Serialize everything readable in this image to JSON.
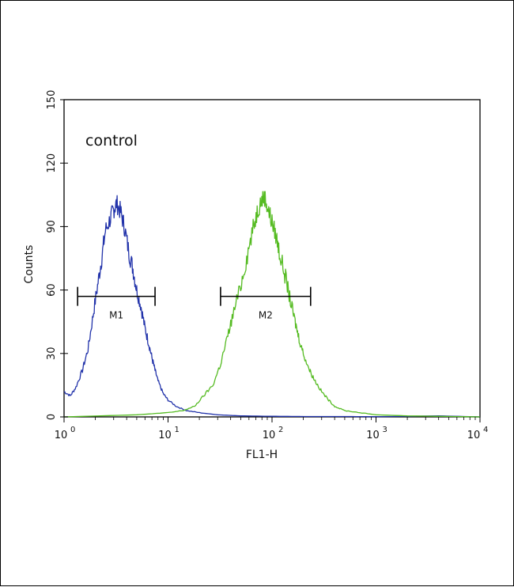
{
  "chart_data": {
    "type": "line",
    "title": "",
    "annotation": "control",
    "xlabel": "FL1-H",
    "ylabel": "Counts",
    "x_scale": "log",
    "xlim": [
      1,
      10000
    ],
    "ylim": [
      0,
      150
    ],
    "x_ticks": [
      {
        "value": 1,
        "base": "10",
        "exp": "0"
      },
      {
        "value": 10,
        "base": "10",
        "exp": "1"
      },
      {
        "value": 100,
        "base": "10",
        "exp": "2"
      },
      {
        "value": 1000,
        "base": "10",
        "exp": "3"
      },
      {
        "value": 10000,
        "base": "10",
        "exp": "4"
      }
    ],
    "y_ticks": [
      "0",
      "30",
      "60",
      "90",
      "120",
      "150"
    ],
    "grid": false,
    "colors": {
      "series_1": "#2233aa",
      "series_2": "#55bb22",
      "axis": "#000000",
      "marker": "#000000"
    },
    "markers": [
      {
        "label": "M1",
        "x_start": 1.35,
        "x_end": 7.5,
        "y": 57
      },
      {
        "label": "M2",
        "x_start": 32,
        "x_end": 235,
        "y": 57
      }
    ],
    "series": [
      {
        "color": "#2233aa",
        "x": [
          1,
          1.15,
          1.3,
          1.5,
          1.7,
          1.9,
          2.1,
          2.3,
          2.5,
          2.8,
          3.0,
          3.2,
          3.5,
          3.8,
          4.2,
          4.6,
          5.0,
          5.5,
          6.0,
          6.5,
          7.0,
          7.5,
          8.0,
          9.0,
          10,
          12,
          15,
          20,
          30,
          50,
          100,
          200,
          500,
          1000,
          4000,
          10000
        ],
        "y": [
          12,
          10,
          14,
          22,
          32,
          48,
          62,
          75,
          88,
          94,
          98,
          101,
          97,
          90,
          78,
          70,
          60,
          52,
          42,
          35,
          28,
          22,
          17,
          11,
          8,
          5,
          3,
          2,
          1,
          0.5,
          0.3,
          0.2,
          0.2,
          0.1,
          0.5,
          0
        ]
      },
      {
        "color": "#55bb22",
        "x": [
          1,
          5,
          10,
          14,
          18,
          22,
          27,
          32,
          37,
          42,
          50,
          57,
          65,
          72,
          78,
          85,
          92,
          100,
          110,
          120,
          135,
          150,
          165,
          180,
          200,
          230,
          260,
          300,
          350,
          400,
          500,
          700,
          1000,
          2000,
          10000
        ],
        "y": [
          0,
          1,
          2,
          3,
          5,
          10,
          15,
          25,
          37,
          48,
          62,
          75,
          88,
          97,
          102,
          104,
          98,
          92,
          85,
          76,
          66,
          55,
          46,
          38,
          30,
          22,
          17,
          12,
          8,
          5,
          3,
          2,
          1,
          0.5,
          0
        ]
      }
    ]
  }
}
